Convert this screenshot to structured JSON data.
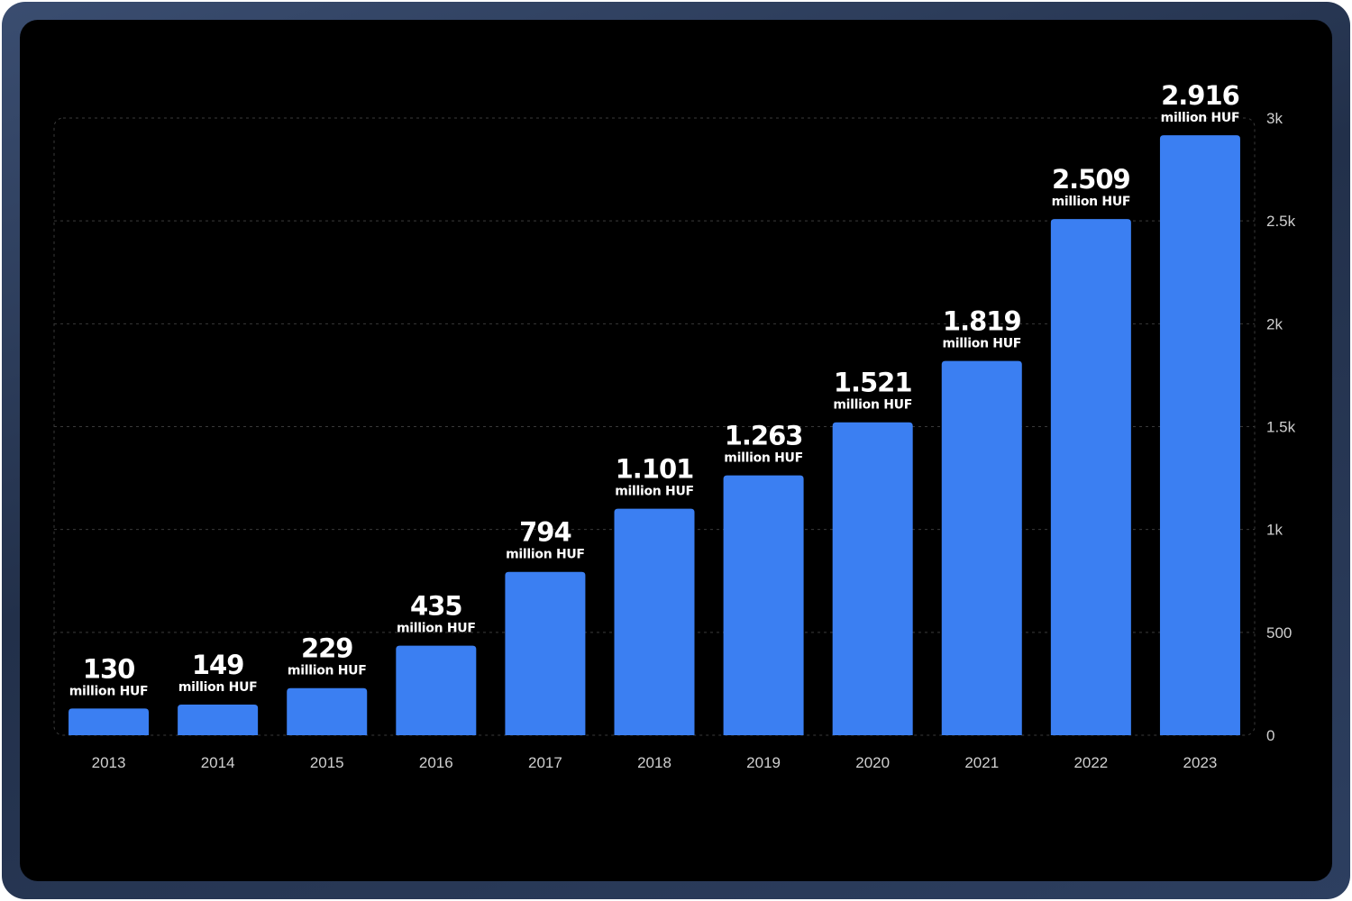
{
  "chart_data": {
    "type": "bar",
    "categories": [
      "2013",
      "2014",
      "2015",
      "2016",
      "2017",
      "2018",
      "2019",
      "2020",
      "2021",
      "2022",
      "2023"
    ],
    "values": [
      130,
      149,
      229,
      435,
      794,
      1101,
      1263,
      1521,
      1819,
      2509,
      2916
    ],
    "value_labels": [
      "130",
      "149",
      "229",
      "435",
      "794",
      "1.101",
      "1.263",
      "1.521",
      "1.819",
      "2.509",
      "2.916"
    ],
    "value_unit": "million HUF",
    "y_ticks": [
      {
        "value": 0,
        "label": "0"
      },
      {
        "value": 500,
        "label": "500"
      },
      {
        "value": 1000,
        "label": "1k"
      },
      {
        "value": 1500,
        "label": "1.5k"
      },
      {
        "value": 2000,
        "label": "2k"
      },
      {
        "value": 2500,
        "label": "2.5k"
      },
      {
        "value": 3000,
        "label": "3k"
      }
    ],
    "ylim": [
      0,
      3000
    ],
    "y_axis_side": "right",
    "grid": true,
    "title": "",
    "xlabel": "",
    "ylabel": "",
    "colors": {
      "bar": "#3b7ff2",
      "background": "#000000",
      "frame": "#2c3d5e",
      "text": "#ffffff",
      "tick_text": "#cfcfcf",
      "grid": "#3a3a3a"
    }
  }
}
